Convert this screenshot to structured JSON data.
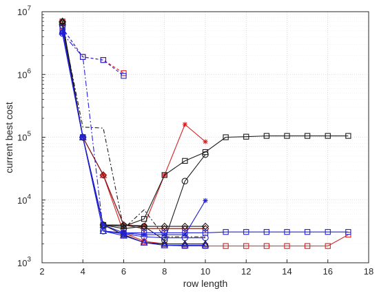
{
  "chart_data": {
    "type": "line",
    "xlabel": "row length",
    "ylabel": "current best cost",
    "y_scale": "log",
    "xlim": [
      2,
      18
    ],
    "ylim": [
      1000,
      10000000
    ],
    "x_ticks": [
      2,
      4,
      6,
      8,
      10,
      12,
      14,
      16,
      18
    ],
    "y_ticks": [
      {
        "value": 1000,
        "base": "10",
        "exp": "3"
      },
      {
        "value": 10000,
        "base": "10",
        "exp": "4"
      },
      {
        "value": 100000,
        "base": "10",
        "exp": "5"
      },
      {
        "value": 1000000,
        "base": "10",
        "exp": "6"
      },
      {
        "value": 10000000,
        "base": "10",
        "exp": "7"
      }
    ],
    "grid": true,
    "series": [
      {
        "color": "#d62020",
        "dash": "",
        "marker": "square",
        "x": [
          3,
          4,
          5,
          6,
          7,
          8,
          9,
          10,
          11,
          12,
          13,
          14,
          15,
          16,
          17
        ],
        "y": [
          7000000,
          100000,
          4000,
          2800,
          2100,
          1900,
          1850,
          1850,
          1850,
          1850,
          1850,
          1850,
          1850,
          1850,
          2800
        ]
      },
      {
        "color": "#d62020",
        "dash": "",
        "marker": "star",
        "x": [
          3,
          4,
          5,
          6,
          7,
          8,
          9,
          10
        ],
        "y": [
          5000000,
          100000,
          25000,
          4000,
          3900,
          25000,
          160000,
          85000
        ]
      },
      {
        "color": "#d62020",
        "dash": "4 3",
        "marker": "square",
        "x": [
          3,
          4,
          5,
          6
        ],
        "y": [
          5500000,
          1900000,
          1700000,
          1050000
        ]
      },
      {
        "color": "#d62020",
        "dash": "",
        "marker": "triangle",
        "x": [
          3,
          4,
          5,
          6,
          7,
          8,
          9,
          10
        ],
        "y": [
          6800000,
          100000,
          25000,
          3000,
          2200,
          2000,
          2000,
          2000
        ]
      },
      {
        "color": "#7a1515",
        "dash": "",
        "marker": "diamond",
        "x": [
          3,
          4,
          5,
          6,
          7,
          8,
          9,
          10
        ],
        "y": [
          7000000,
          100000,
          25000,
          4000,
          3500,
          3500,
          3500,
          3500
        ]
      },
      {
        "color": "#1a1a1a",
        "dash": "",
        "marker": "square",
        "x": [
          3,
          4,
          5,
          6,
          7,
          8,
          9,
          10,
          11,
          12,
          13,
          14,
          15,
          16,
          17
        ],
        "y": [
          6500000,
          100000,
          4000,
          3800,
          5000,
          25000,
          42000,
          58000,
          100000,
          102000,
          105000,
          105000,
          105000,
          105000,
          105000
        ]
      },
      {
        "color": "#1a1a1a",
        "dash": "",
        "marker": "circle",
        "x": [
          3,
          4,
          5,
          6,
          7,
          8,
          9,
          10
        ],
        "y": [
          6000000,
          100000,
          4000,
          3500,
          3800,
          2300,
          20000,
          53000
        ]
      },
      {
        "color": "#1a1a1a",
        "dash": "6 3 2 3",
        "marker": "none",
        "x": [
          3,
          4,
          5,
          6,
          7,
          8,
          9,
          10
        ],
        "y": [
          6000000,
          145000,
          140000,
          3500,
          7000,
          2600,
          2600,
          2600
        ]
      },
      {
        "color": "#1a1a1a",
        "dash": "",
        "marker": "triangle",
        "x": [
          3,
          4,
          5,
          6,
          7,
          8,
          9,
          10
        ],
        "y": [
          7000000,
          100000,
          4000,
          2800,
          2100,
          2000,
          2000,
          2000
        ]
      },
      {
        "color": "#1a1a1a",
        "dash": "",
        "marker": "diamond",
        "x": [
          3,
          4,
          5,
          6,
          7,
          8,
          9,
          10
        ],
        "y": [
          6800000,
          100000,
          4000,
          4000,
          3800,
          3800,
          3800,
          3800
        ]
      },
      {
        "color": "#2020d6",
        "dash": "",
        "marker": "square",
        "x": [
          3,
          4,
          5,
          6,
          7,
          8,
          9,
          10,
          11,
          12,
          13,
          14,
          15,
          16,
          17
        ],
        "y": [
          5000000,
          100000,
          3200,
          3000,
          3000,
          3000,
          3000,
          3000,
          3100,
          3100,
          3100,
          3100,
          3100,
          3100,
          3100
        ]
      },
      {
        "color": "#2020d6",
        "dash": "4 3",
        "marker": "square",
        "x": [
          3,
          4,
          5,
          6
        ],
        "y": [
          5500000,
          1900000,
          1700000,
          950000
        ]
      },
      {
        "color": "#2020d6",
        "dash": "8 3 2 3",
        "marker": "none",
        "x": [
          3,
          4,
          5,
          6,
          7
        ],
        "y": [
          4500000,
          1900000,
          3200,
          3000,
          2800
        ]
      },
      {
        "color": "#2020d6",
        "dash": "",
        "marker": "star",
        "x": [
          3,
          4,
          5,
          6,
          7,
          8,
          9,
          10
        ],
        "y": [
          4500000,
          100000,
          4000,
          3000,
          2800,
          2800,
          2800,
          9800
        ]
      },
      {
        "color": "#2020d6",
        "dash": "",
        "marker": "circle",
        "x": [
          3,
          4,
          5,
          6,
          7,
          8,
          9,
          10
        ],
        "y": [
          4500000,
          100000,
          3200,
          2900,
          2600,
          2500,
          2500,
          2500
        ]
      },
      {
        "color": "#2020d6",
        "dash": "",
        "marker": "triangle",
        "x": [
          3,
          4,
          5,
          6,
          7,
          8,
          9,
          10
        ],
        "y": [
          4800000,
          100000,
          3200,
          2700,
          2100,
          1900,
          1900,
          1900
        ]
      }
    ]
  }
}
